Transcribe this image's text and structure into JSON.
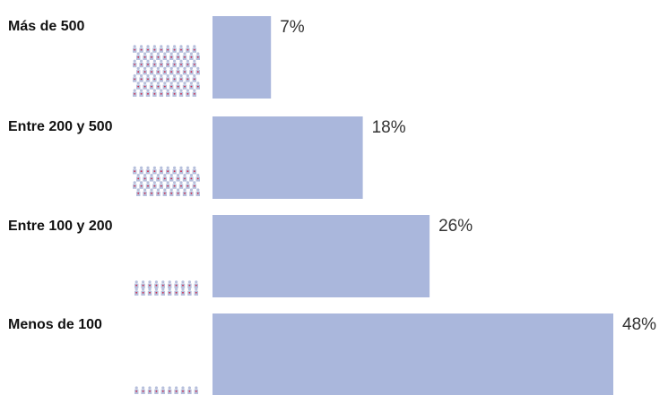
{
  "chart_data": {
    "type": "bar",
    "orientation": "horizontal",
    "categories": [
      "Más de 500",
      "Entre 200 y 500",
      "Entre 100 y 200",
      "Menos de 100"
    ],
    "values": [
      7,
      18,
      26,
      48
    ],
    "value_labels": [
      "7%",
      "18%",
      "26%",
      "48%"
    ],
    "unit": "%",
    "xlim": [
      0,
      48
    ],
    "title": "",
    "xlabel": "",
    "ylabel": "",
    "grid": false,
    "legend": "none",
    "pictogram_rows": [
      7,
      4,
      2,
      1
    ],
    "colors": {
      "bar": "#aab7dc",
      "figure": "#b6bfdc",
      "figure_dot": "#d22a4a",
      "label": "#111111",
      "value_label": "#333333"
    }
  }
}
